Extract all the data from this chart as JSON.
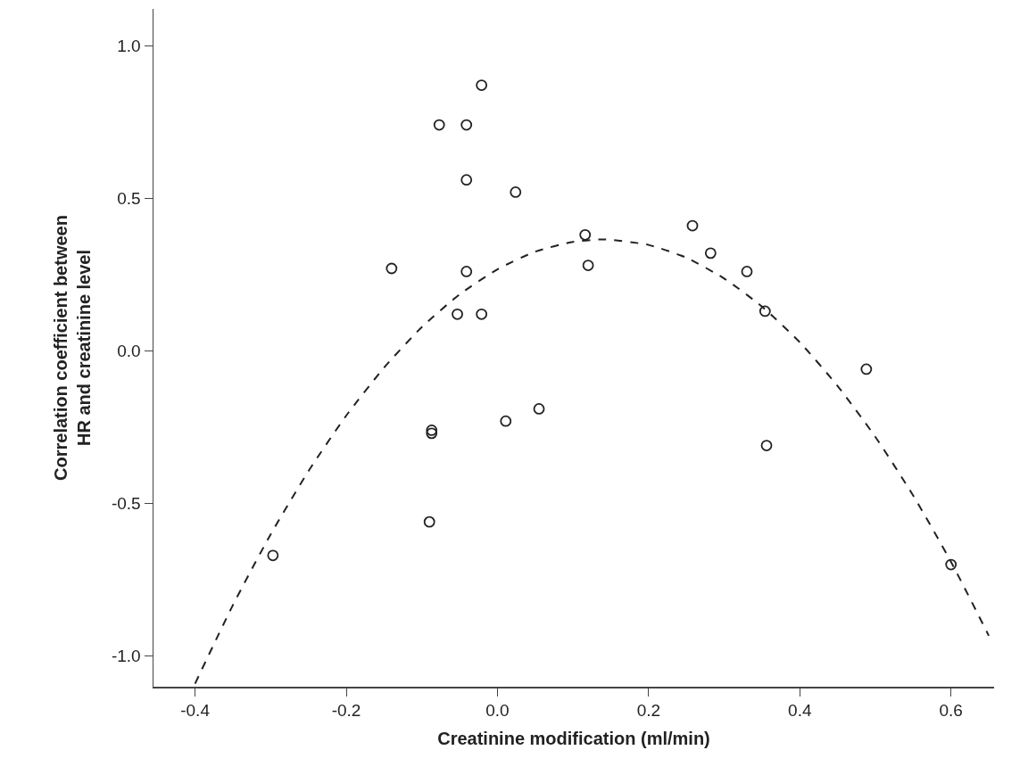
{
  "chart_data": {
    "type": "scatter",
    "xlabel": "Creatinine modification (ml/min)",
    "ylabel": "Correlation coefficient between\nHR and creatinine level",
    "xlim": [
      -0.455,
      0.657
    ],
    "xticks": [
      {
        "value": -0.4,
        "label": "-0.4"
      },
      {
        "value": -0.2,
        "label": "-0.2"
      },
      {
        "value": 0,
        "label": "0.0"
      },
      {
        "value": 0.2,
        "label": "0.2"
      },
      {
        "value": 0.4,
        "label": "0.4"
      },
      {
        "value": 0.6,
        "label": "0.6"
      }
    ],
    "ylim": [
      -1.1,
      1.12
    ],
    "yticks": [
      {
        "value": -1,
        "label": "-1.0"
      },
      {
        "value": -0.5,
        "label": "-0.5"
      },
      {
        "value": 0,
        "label": "0.0"
      },
      {
        "value": 0.5,
        "label": "0.5"
      },
      {
        "value": 1,
        "label": "1.0"
      }
    ],
    "grid": false,
    "marker": "circle",
    "series": [
      {
        "color": "#222222",
        "x": [
          -0.021,
          -0.077,
          -0.041,
          -0.041,
          0.024,
          -0.14,
          -0.041,
          -0.053,
          -0.021,
          -0.087,
          -0.087,
          0.011,
          0.055,
          -0.09,
          -0.297,
          0.116,
          0.12,
          0.258,
          0.282,
          0.33,
          0.354,
          0.356,
          0.488,
          0.6
        ],
        "values": [
          0.87,
          0.74,
          0.74,
          0.56,
          0.52,
          0.27,
          0.26,
          0.12,
          0.12,
          -0.26,
          -0.27,
          -0.23,
          -0.19,
          -0.56,
          -0.67,
          0.38,
          0.28,
          0.41,
          0.32,
          0.26,
          0.13,
          -0.31,
          -0.06,
          -0.7
        ]
      },
      {
        "type": "line",
        "color": "#222222",
        "line_style": "dashed",
        "marker": "none",
        "x": [
          -0.4,
          -0.35,
          -0.3,
          -0.25,
          -0.2,
          -0.15,
          -0.1,
          -0.05,
          0,
          0.05,
          0.1,
          0.14,
          0.2,
          0.25,
          0.3,
          0.35,
          0.4,
          0.45,
          0.5,
          0.55,
          0.6,
          0.65
        ],
        "values": [
          -1.09,
          -0.833,
          -0.601,
          -0.394,
          -0.212,
          -0.055,
          0.078,
          0.185,
          0.267,
          0.325,
          0.357,
          0.365,
          0.347,
          0.305,
          0.237,
          0.145,
          0.028,
          -0.115,
          -0.282,
          -0.474,
          -0.691,
          -0.933
        ]
      }
    ]
  }
}
